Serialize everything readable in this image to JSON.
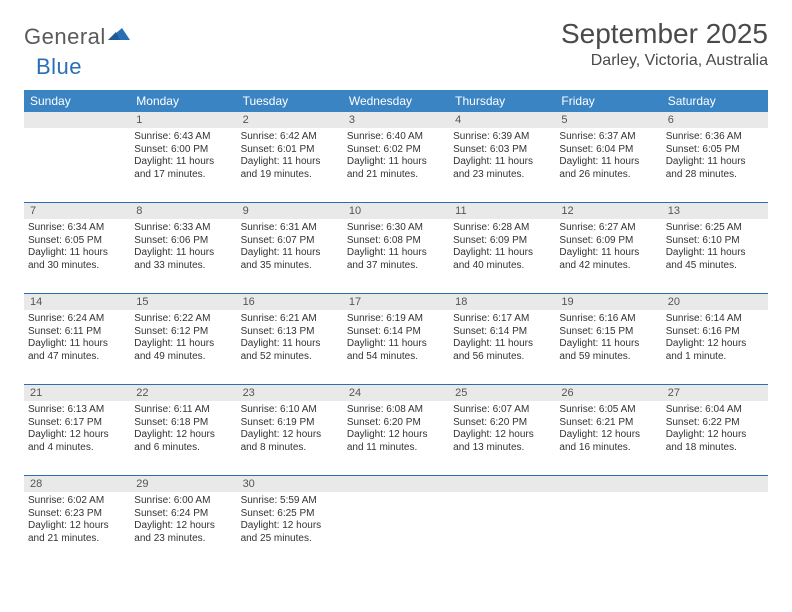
{
  "logo": {
    "text_left": "General",
    "text_right": "Blue"
  },
  "title": {
    "month": "September 2025",
    "location": "Darley, Victoria, Australia"
  },
  "colors": {
    "header_bg": "#3b84c4",
    "header_text": "#ffffff",
    "daynum_bg": "#e9e9e9",
    "sep_line": "#2a6fb5",
    "body_text": "#333333",
    "title_text": "#4a4a4a",
    "logo_grey": "#5a5a5a",
    "logo_blue": "#2a6fb5",
    "page_bg": "#ffffff"
  },
  "day_headers": [
    "Sunday",
    "Monday",
    "Tuesday",
    "Wednesday",
    "Thursday",
    "Friday",
    "Saturday"
  ],
  "weeks": [
    {
      "nums": [
        "",
        "1",
        "2",
        "3",
        "4",
        "5",
        "6"
      ],
      "cells": [
        null,
        {
          "sunrise": "Sunrise: 6:43 AM",
          "sunset": "Sunset: 6:00 PM",
          "day1": "Daylight: 11 hours",
          "day2": "and 17 minutes."
        },
        {
          "sunrise": "Sunrise: 6:42 AM",
          "sunset": "Sunset: 6:01 PM",
          "day1": "Daylight: 11 hours",
          "day2": "and 19 minutes."
        },
        {
          "sunrise": "Sunrise: 6:40 AM",
          "sunset": "Sunset: 6:02 PM",
          "day1": "Daylight: 11 hours",
          "day2": "and 21 minutes."
        },
        {
          "sunrise": "Sunrise: 6:39 AM",
          "sunset": "Sunset: 6:03 PM",
          "day1": "Daylight: 11 hours",
          "day2": "and 23 minutes."
        },
        {
          "sunrise": "Sunrise: 6:37 AM",
          "sunset": "Sunset: 6:04 PM",
          "day1": "Daylight: 11 hours",
          "day2": "and 26 minutes."
        },
        {
          "sunrise": "Sunrise: 6:36 AM",
          "sunset": "Sunset: 6:05 PM",
          "day1": "Daylight: 11 hours",
          "day2": "and 28 minutes."
        }
      ]
    },
    {
      "nums": [
        "7",
        "8",
        "9",
        "10",
        "11",
        "12",
        "13"
      ],
      "cells": [
        {
          "sunrise": "Sunrise: 6:34 AM",
          "sunset": "Sunset: 6:05 PM",
          "day1": "Daylight: 11 hours",
          "day2": "and 30 minutes."
        },
        {
          "sunrise": "Sunrise: 6:33 AM",
          "sunset": "Sunset: 6:06 PM",
          "day1": "Daylight: 11 hours",
          "day2": "and 33 minutes."
        },
        {
          "sunrise": "Sunrise: 6:31 AM",
          "sunset": "Sunset: 6:07 PM",
          "day1": "Daylight: 11 hours",
          "day2": "and 35 minutes."
        },
        {
          "sunrise": "Sunrise: 6:30 AM",
          "sunset": "Sunset: 6:08 PM",
          "day1": "Daylight: 11 hours",
          "day2": "and 37 minutes."
        },
        {
          "sunrise": "Sunrise: 6:28 AM",
          "sunset": "Sunset: 6:09 PM",
          "day1": "Daylight: 11 hours",
          "day2": "and 40 minutes."
        },
        {
          "sunrise": "Sunrise: 6:27 AM",
          "sunset": "Sunset: 6:09 PM",
          "day1": "Daylight: 11 hours",
          "day2": "and 42 minutes."
        },
        {
          "sunrise": "Sunrise: 6:25 AM",
          "sunset": "Sunset: 6:10 PM",
          "day1": "Daylight: 11 hours",
          "day2": "and 45 minutes."
        }
      ]
    },
    {
      "nums": [
        "14",
        "15",
        "16",
        "17",
        "18",
        "19",
        "20"
      ],
      "cells": [
        {
          "sunrise": "Sunrise: 6:24 AM",
          "sunset": "Sunset: 6:11 PM",
          "day1": "Daylight: 11 hours",
          "day2": "and 47 minutes."
        },
        {
          "sunrise": "Sunrise: 6:22 AM",
          "sunset": "Sunset: 6:12 PM",
          "day1": "Daylight: 11 hours",
          "day2": "and 49 minutes."
        },
        {
          "sunrise": "Sunrise: 6:21 AM",
          "sunset": "Sunset: 6:13 PM",
          "day1": "Daylight: 11 hours",
          "day2": "and 52 minutes."
        },
        {
          "sunrise": "Sunrise: 6:19 AM",
          "sunset": "Sunset: 6:14 PM",
          "day1": "Daylight: 11 hours",
          "day2": "and 54 minutes."
        },
        {
          "sunrise": "Sunrise: 6:17 AM",
          "sunset": "Sunset: 6:14 PM",
          "day1": "Daylight: 11 hours",
          "day2": "and 56 minutes."
        },
        {
          "sunrise": "Sunrise: 6:16 AM",
          "sunset": "Sunset: 6:15 PM",
          "day1": "Daylight: 11 hours",
          "day2": "and 59 minutes."
        },
        {
          "sunrise": "Sunrise: 6:14 AM",
          "sunset": "Sunset: 6:16 PM",
          "day1": "Daylight: 12 hours",
          "day2": "and 1 minute."
        }
      ]
    },
    {
      "nums": [
        "21",
        "22",
        "23",
        "24",
        "25",
        "26",
        "27"
      ],
      "cells": [
        {
          "sunrise": "Sunrise: 6:13 AM",
          "sunset": "Sunset: 6:17 PM",
          "day1": "Daylight: 12 hours",
          "day2": "and 4 minutes."
        },
        {
          "sunrise": "Sunrise: 6:11 AM",
          "sunset": "Sunset: 6:18 PM",
          "day1": "Daylight: 12 hours",
          "day2": "and 6 minutes."
        },
        {
          "sunrise": "Sunrise: 6:10 AM",
          "sunset": "Sunset: 6:19 PM",
          "day1": "Daylight: 12 hours",
          "day2": "and 8 minutes."
        },
        {
          "sunrise": "Sunrise: 6:08 AM",
          "sunset": "Sunset: 6:20 PM",
          "day1": "Daylight: 12 hours",
          "day2": "and 11 minutes."
        },
        {
          "sunrise": "Sunrise: 6:07 AM",
          "sunset": "Sunset: 6:20 PM",
          "day1": "Daylight: 12 hours",
          "day2": "and 13 minutes."
        },
        {
          "sunrise": "Sunrise: 6:05 AM",
          "sunset": "Sunset: 6:21 PM",
          "day1": "Daylight: 12 hours",
          "day2": "and 16 minutes."
        },
        {
          "sunrise": "Sunrise: 6:04 AM",
          "sunset": "Sunset: 6:22 PM",
          "day1": "Daylight: 12 hours",
          "day2": "and 18 minutes."
        }
      ]
    },
    {
      "nums": [
        "28",
        "29",
        "30",
        "",
        "",
        "",
        ""
      ],
      "cells": [
        {
          "sunrise": "Sunrise: 6:02 AM",
          "sunset": "Sunset: 6:23 PM",
          "day1": "Daylight: 12 hours",
          "day2": "and 21 minutes."
        },
        {
          "sunrise": "Sunrise: 6:00 AM",
          "sunset": "Sunset: 6:24 PM",
          "day1": "Daylight: 12 hours",
          "day2": "and 23 minutes."
        },
        {
          "sunrise": "Sunrise: 5:59 AM",
          "sunset": "Sunset: 6:25 PM",
          "day1": "Daylight: 12 hours",
          "day2": "and 25 minutes."
        },
        null,
        null,
        null,
        null
      ]
    }
  ]
}
